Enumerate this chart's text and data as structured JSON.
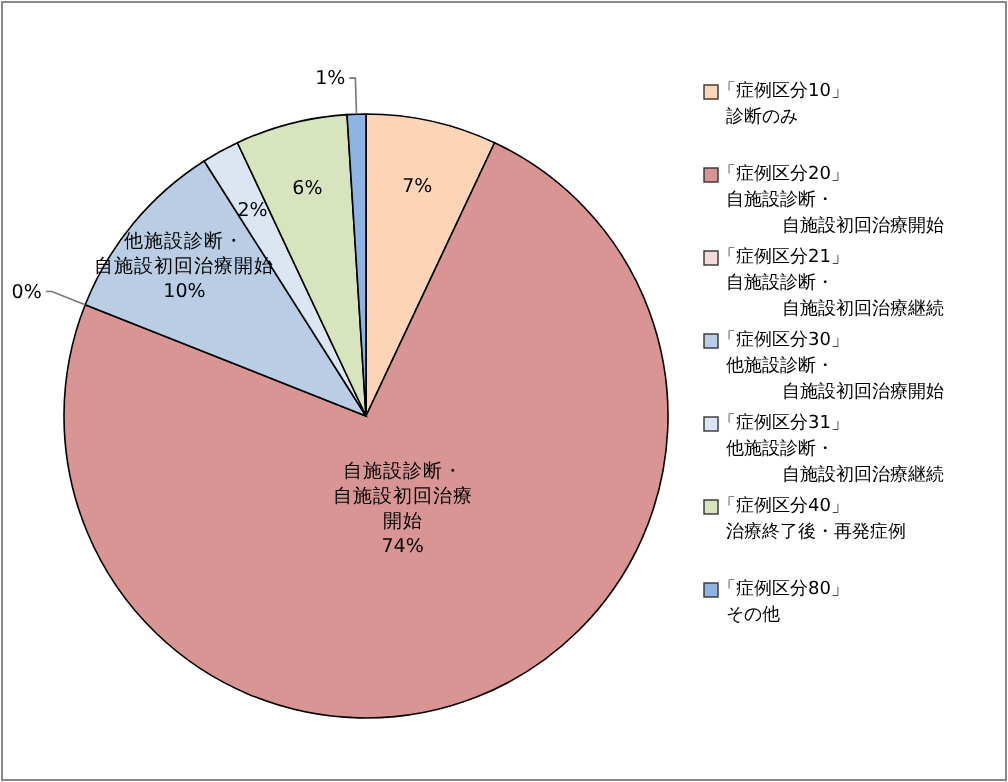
{
  "chart_data": {
    "type": "pie",
    "categories": [
      "「症例区分10」診断のみ",
      "「症例区分20」自施設診断・自施設初回治療開始",
      "「症例区分21」自施設診断・自施設初回治療継続",
      "「症例区分30」他施設診断・自施設初回治療開始",
      "「症例区分31」他施設診断・自施設初回治療継続",
      "「症例区分40」治療終了後・再発症例",
      "「症例区分80」その他"
    ],
    "values": [
      7,
      74,
      0,
      10,
      2,
      6,
      1
    ],
    "colors": [
      "#fbd5b5",
      "#d99594",
      "#f2dcdb",
      "#b9cde5",
      "#dce6f2",
      "#d7e4bd",
      "#8eb4e3"
    ],
    "value_labels": [
      "7%",
      "自施設診断・自施設初回治療開始74%",
      "0%",
      "他施設診断・自施設初回治療開始10%",
      "2%",
      "6%",
      "1%"
    ],
    "legend": "right"
  }
}
